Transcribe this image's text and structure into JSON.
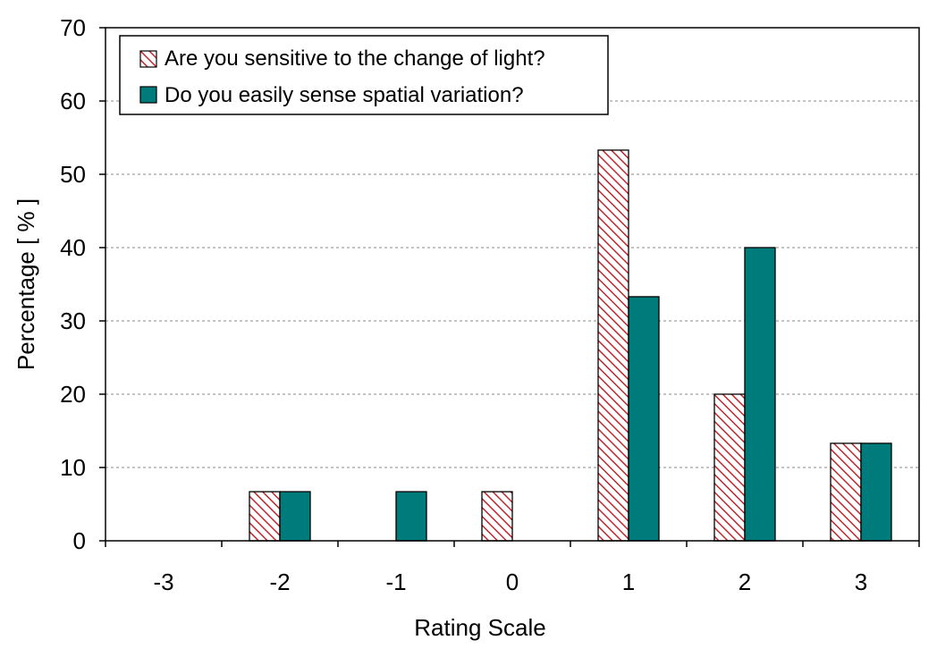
{
  "chart_data": {
    "type": "bar",
    "categories": [
      "-3",
      "-2",
      "-1",
      "0",
      "1",
      "2",
      "3"
    ],
    "series": [
      {
        "name": "Are you sensitive to the change of light?",
        "values": [
          0,
          6.7,
          0,
          6.7,
          53.3,
          20,
          13.3
        ],
        "fill": "hatch",
        "color": "#c0272d"
      },
      {
        "name": "Do you easily sense spatial variation?",
        "values": [
          0,
          6.7,
          6.7,
          0,
          33.3,
          40,
          13.3
        ],
        "fill": "solid",
        "color": "#007b7b"
      }
    ],
    "xlabel": "Rating Scale",
    "ylabel": "Percentage [ % ]",
    "ylim": [
      0,
      70
    ],
    "yticks": [
      "0",
      "10",
      "20",
      "30",
      "40",
      "50",
      "60",
      "70"
    ],
    "grid": "horizontal dashed",
    "legend": "top-left"
  }
}
